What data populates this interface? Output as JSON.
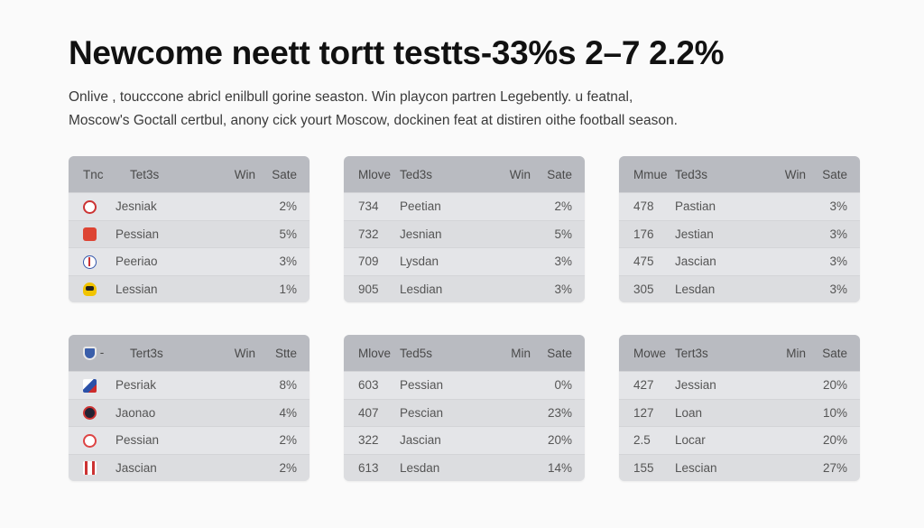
{
  "title": "Newcome neett tortt testts-33%s  2–7 2.2%",
  "subtitle_lines": [
    "Onlive , toucccone abricl enilbull gorine seaston. Win playcon partren Legebently. u featnal,",
    "Moscow's Goctall certbul, anony cick yourt Moscow, dockinen feat at distiren oithe football season."
  ],
  "tables": [
    {
      "headers": [
        "Tnc",
        "Tet3s",
        "Win",
        "Sate"
      ],
      "rows": [
        {
          "icon": "club-crest-icon",
          "col1": "",
          "name": "Jesniak",
          "win": "",
          "sate": "2%"
        },
        {
          "icon": "club-crest-icon",
          "col1": "",
          "name": "Pessian",
          "win": "",
          "sate": "5%"
        },
        {
          "icon": "club-crest-icon",
          "col1": "",
          "name": "Peeriao",
          "win": "",
          "sate": "3%"
        },
        {
          "icon": "club-crest-icon",
          "col1": "",
          "name": "Lessian",
          "win": "",
          "sate": "1%"
        }
      ]
    },
    {
      "headers": [
        "Mlove",
        "Ted3s",
        "Win",
        "Sate"
      ],
      "rows": [
        {
          "col1": "734",
          "name": "Peetian",
          "win": "",
          "sate": "2%"
        },
        {
          "col1": "732",
          "name": "Jesnian",
          "win": "",
          "sate": "5%"
        },
        {
          "col1": "709",
          "name": "Lysdan",
          "win": "",
          "sate": "3%"
        },
        {
          "col1": "905",
          "name": "Lesdian",
          "win": "",
          "sate": "3%"
        }
      ]
    },
    {
      "headers": [
        "Mmue",
        "Ted3s",
        "Win",
        "Sate"
      ],
      "rows": [
        {
          "col1": "478",
          "name": "Pastian",
          "win": "",
          "sate": "3%"
        },
        {
          "col1": "176",
          "name": "Jestian",
          "win": "",
          "sate": "3%"
        },
        {
          "col1": "475",
          "name": "Jascian",
          "win": "",
          "sate": "3%"
        },
        {
          "col1": "305",
          "name": "Lesdan",
          "win": "",
          "sate": "3%"
        }
      ]
    },
    {
      "headers": [
        "-",
        "Tert3s",
        "Win",
        "Stte"
      ],
      "rows": [
        {
          "icon": "club-crest-icon",
          "col1": "",
          "name": "Pesriak",
          "win": "",
          "sate": "8%"
        },
        {
          "icon": "club-crest-icon",
          "col1": "",
          "name": "Jaonao",
          "win": "",
          "sate": "4%"
        },
        {
          "icon": "club-crest-icon",
          "col1": "",
          "name": "Pessian",
          "win": "",
          "sate": "2%"
        },
        {
          "icon": "club-crest-icon",
          "col1": "",
          "name": "Jascian",
          "win": "",
          "sate": "2%"
        }
      ]
    },
    {
      "headers": [
        "Mlove",
        "Ted5s",
        "Min",
        "Sate"
      ],
      "rows": [
        {
          "col1": "603",
          "name": "Pessian",
          "win": "",
          "sate": "0%"
        },
        {
          "col1": "407",
          "name": "Pescian",
          "win": "",
          "sate": "23%"
        },
        {
          "col1": "322",
          "name": "Jascian",
          "win": "",
          "sate": "20%"
        },
        {
          "col1": "613",
          "name": "Lesdan",
          "win": "",
          "sate": "14%"
        }
      ]
    },
    {
      "headers": [
        "Mowe",
        "Tert3s",
        "Min",
        "Sate"
      ],
      "rows": [
        {
          "col1": "427",
          "name": "Jessian",
          "win": "",
          "sate": "20%"
        },
        {
          "col1": "127",
          "name": "Loan",
          "win": "",
          "sate": "10%"
        },
        {
          "col1": "2.5",
          "name": "Locar",
          "win": "",
          "sate": "20%"
        },
        {
          "col1": "155",
          "name": "Lescian",
          "win": "",
          "sate": "27%"
        }
      ]
    }
  ]
}
